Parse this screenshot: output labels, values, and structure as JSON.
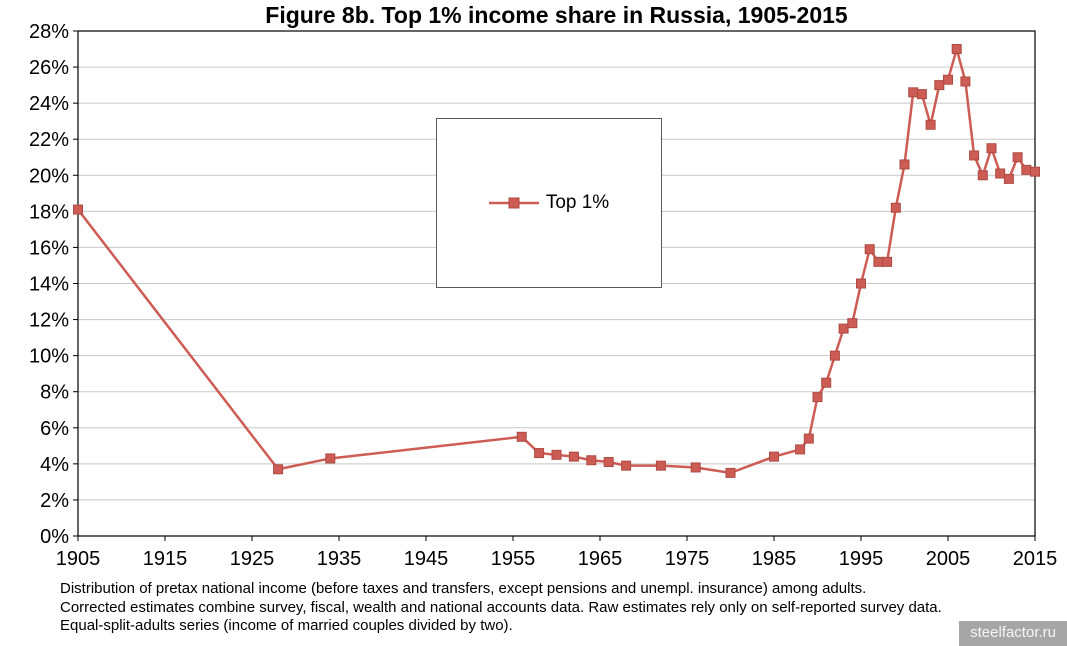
{
  "chart_data": {
    "type": "line",
    "title": "Figure 8b. Top 1% income share in Russia, 1905-2015",
    "xlabel": "",
    "ylabel": "",
    "xlim": [
      1905,
      2015
    ],
    "ylim": [
      0,
      28
    ],
    "x_tick_step": 10,
    "y_tick_step": 2,
    "y_tick_suffix": "%",
    "grid": "horizontal",
    "legend": {
      "label": "Top 1%",
      "position": "center"
    },
    "series": [
      {
        "name": "Top 1%",
        "color": "#cd5c55",
        "marker_border": "#ad4a42",
        "marker": "square",
        "points": [
          [
            1905,
            18.1
          ],
          [
            1928,
            3.7
          ],
          [
            1934,
            4.3
          ],
          [
            1956,
            5.5
          ],
          [
            1958,
            4.6
          ],
          [
            1960,
            4.5
          ],
          [
            1962,
            4.4
          ],
          [
            1964,
            4.2
          ],
          [
            1966,
            4.1
          ],
          [
            1968,
            3.9
          ],
          [
            1972,
            3.9
          ],
          [
            1976,
            3.8
          ],
          [
            1980,
            3.5
          ],
          [
            1985,
            4.4
          ],
          [
            1988,
            4.8
          ],
          [
            1989,
            5.4
          ],
          [
            1990,
            7.7
          ],
          [
            1991,
            8.5
          ],
          [
            1992,
            10.0
          ],
          [
            1993,
            11.5
          ],
          [
            1994,
            11.8
          ],
          [
            1995,
            14.0
          ],
          [
            1996,
            15.9
          ],
          [
            1997,
            15.2
          ],
          [
            1998,
            15.2
          ],
          [
            1999,
            18.2
          ],
          [
            2000,
            20.6
          ],
          [
            2001,
            24.6
          ],
          [
            2002,
            24.5
          ],
          [
            2003,
            22.8
          ],
          [
            2004,
            25.0
          ],
          [
            2005,
            25.3
          ],
          [
            2006,
            27.0
          ],
          [
            2007,
            25.2
          ],
          [
            2008,
            21.1
          ],
          [
            2009,
            20.0
          ],
          [
            2010,
            21.5
          ],
          [
            2011,
            20.1
          ],
          [
            2012,
            19.8
          ],
          [
            2013,
            21.0
          ],
          [
            2014,
            20.3
          ],
          [
            2015,
            20.2
          ]
        ]
      }
    ]
  },
  "footnotes": {
    "line1": "Distribution of pretax national income (before taxes and transfers, except pensions and unempl. insurance) among adults.",
    "line2": "Corrected estimates combine survey, fiscal, wealth and national accounts data. Raw estimates rely only on self-reported survey data.",
    "line3": "Equal-split-adults series (income of married couples divided by two)."
  },
  "watermark": "steelfactor.ru"
}
